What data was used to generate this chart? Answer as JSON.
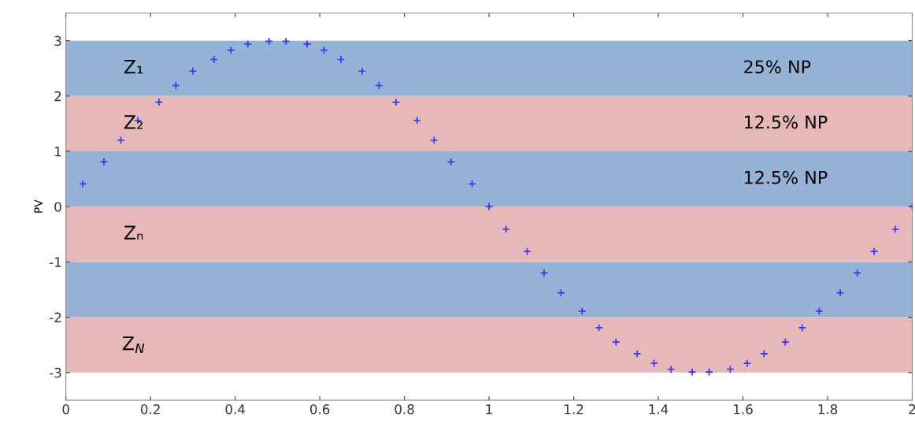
{
  "chart_data": {
    "type": "scatter",
    "ylabel": "PV",
    "x": [
      0.04,
      0.09,
      0.13,
      0.17,
      0.22,
      0.26,
      0.3,
      0.35,
      0.39,
      0.43,
      0.48,
      0.52,
      0.57,
      0.61,
      0.65,
      0.7,
      0.74,
      0.78,
      0.83,
      0.87,
      0.91,
      0.96,
      1,
      1.04,
      1.09,
      1.13,
      1.17,
      1.22,
      1.26,
      1.3,
      1.35,
      1.39,
      1.43,
      1.48,
      1.52,
      1.57,
      1.61,
      1.65,
      1.7,
      1.74,
      1.78,
      1.83,
      1.87,
      1.91,
      1.96,
      2
    ],
    "series": [
      {
        "color": "#3333ff",
        "values": [
          0.41,
          0.81,
          1.2,
          1.56,
          1.89,
          2.19,
          2.45,
          2.66,
          2.83,
          2.94,
          2.99,
          2.99,
          2.94,
          2.83,
          2.66,
          2.45,
          2.19,
          1.89,
          1.56,
          1.2,
          0.81,
          0.41,
          0,
          -0.41,
          -0.81,
          -1.2,
          -1.56,
          -1.89,
          -2.19,
          -2.45,
          -2.66,
          -2.83,
          -2.94,
          -2.99,
          -2.99,
          -2.94,
          -2.83,
          -2.66,
          -2.45,
          -2.19,
          -1.89,
          -1.56,
          -1.2,
          -0.81,
          -0.41,
          0
        ]
      }
    ],
    "marker": "cross",
    "bands": [
      {
        "axis": "y",
        "from": 2,
        "to": 3,
        "label": "Z₁",
        "color": "#95b3d7"
      },
      {
        "axis": "y",
        "from": 1,
        "to": 2,
        "label": "Z₂",
        "color": "#e6b9b8"
      },
      {
        "axis": "y",
        "from": 0,
        "to": 1,
        "label": null,
        "color": "#95b3d7"
      },
      {
        "axis": "y",
        "from": -1,
        "to": 0,
        "label": "Zₙ",
        "color": "#e6b9b8"
      },
      {
        "axis": "y",
        "from": -2,
        "to": -1,
        "label": null,
        "color": "#95b3d7"
      },
      {
        "axis": "y",
        "from": -3,
        "to": -2,
        "label": "Z$_{N}$",
        "color": "#e6b9b8"
      }
    ],
    "annotations": [
      "25% NP",
      "12.5% NP",
      "12.5% NP"
    ],
    "xlim": [
      0,
      2
    ],
    "ylim": [
      -3.5,
      3.5
    ],
    "xticks": [
      0,
      0.2,
      0.4,
      0.6,
      0.8,
      1,
      1.2,
      1.4,
      1.6,
      1.8,
      2
    ],
    "yticks": [
      -3,
      -2,
      -1,
      0,
      1,
      2,
      3
    ],
    "grid": false,
    "legend": false
  }
}
